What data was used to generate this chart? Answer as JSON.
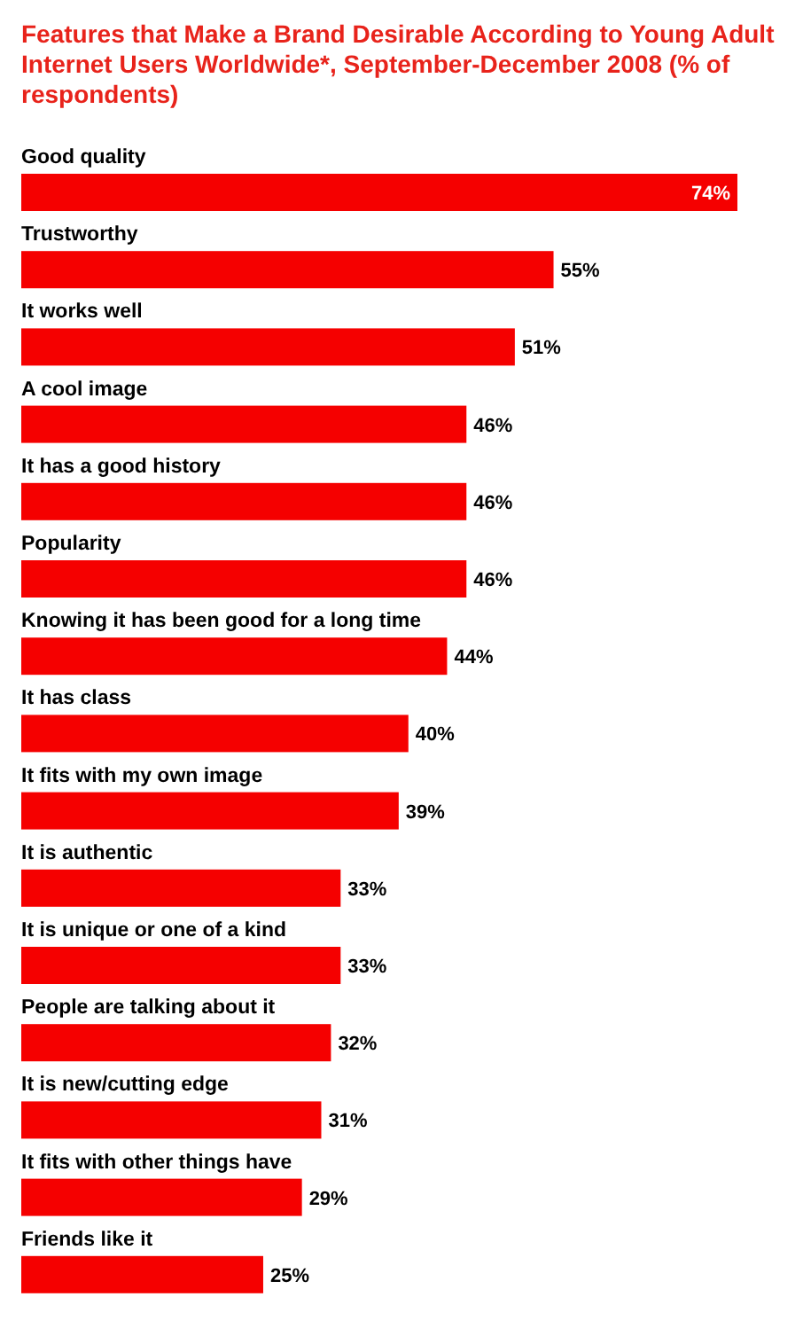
{
  "chart_data": {
    "type": "bar",
    "orientation": "horizontal",
    "title": "Features that Make a Brand Desirable According to Young Adult Internet Users Worldwide*, September-December 2008 (% of respondents)",
    "categories": [
      "Good quality",
      "Trustworthy",
      "It works well",
      "A cool image",
      "It has a good history",
      "Popularity",
      "Knowing it has been good for a long time",
      "It has class",
      "It fits with my own image",
      "It is authentic",
      "It is unique or one of a kind",
      "People are talking about it",
      "It is new/cutting edge",
      "It fits with other things have",
      "Friends like it"
    ],
    "values": [
      74,
      55,
      51,
      46,
      46,
      46,
      44,
      40,
      39,
      33,
      33,
      32,
      31,
      29,
      25
    ],
    "value_labels": [
      "74%",
      "55%",
      "51%",
      "46%",
      "46%",
      "46%",
      "44%",
      "40%",
      "39%",
      "33%",
      "33%",
      "32%",
      "31%",
      "29%",
      "25%"
    ],
    "color": "#f50000"
  }
}
